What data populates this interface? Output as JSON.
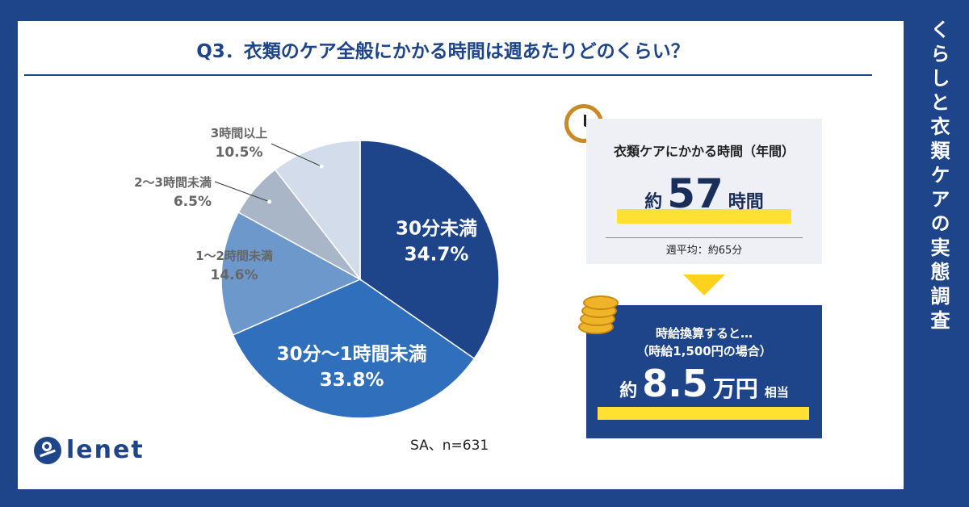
{
  "side_title": "くらしと衣類ケアの実態調査",
  "question_title": "Q3．衣類のケア全般にかかる時間は週あたりどのくらい？",
  "note": "SA、n=631",
  "logo_text": "lenet",
  "chart_data": {
    "type": "pie",
    "title": "Q3．衣類のケア全般にかかる時間は週あたりどのくらい？",
    "slices": [
      {
        "label": "30分未満",
        "value": 34.7,
        "display": "34.7%",
        "color": "#1e4589"
      },
      {
        "label": "30分～1時間未満",
        "value": 33.8,
        "display": "33.8%",
        "color": "#2f6fbb"
      },
      {
        "label": "1～2時間未満",
        "value": 14.6,
        "display": "14.6%",
        "color": "#6d98cc"
      },
      {
        "label": "2～3時間未満",
        "value": 6.5,
        "display": "6.5%",
        "color": "#a9b6c8"
      },
      {
        "label": "3時間以上",
        "value": 10.5,
        "display": "10.5%",
        "color": "#d2dcea"
      }
    ]
  },
  "annual_box": {
    "title": "衣類ケアにかかる時間（年間）",
    "prefix": "約",
    "value": "57",
    "suffix": "時間",
    "sub": "週平均：約65分"
  },
  "wage_box": {
    "line1": "時給換算すると…",
    "line2": "（時給1,500円の場合）",
    "prefix": "約",
    "value": "8.5",
    "suffix": "万円",
    "tail": "相当"
  },
  "colors": {
    "brand": "#1e4589",
    "highlight": "#ffe033",
    "arrow": "#ffd21e"
  }
}
